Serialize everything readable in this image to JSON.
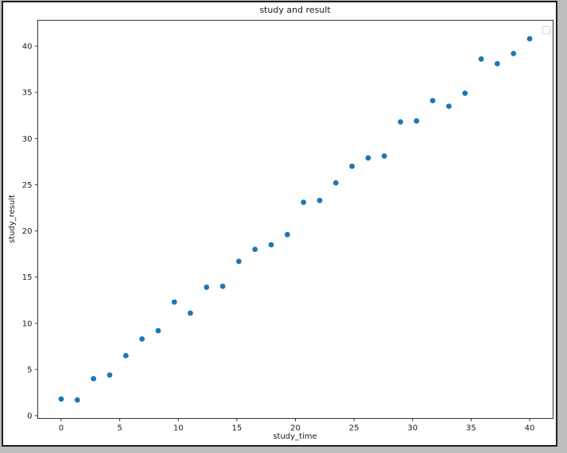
{
  "window": {
    "outer_background": "#bdbdbd",
    "figure_background": "#ffffff",
    "frame_border_color": "#1f1f1f"
  },
  "chart_data": {
    "type": "scatter",
    "title": "study and result",
    "xlabel": "study_time",
    "ylabel": "study_result",
    "x": [
      0,
      1.38,
      2.76,
      4.14,
      5.52,
      6.9,
      8.28,
      9.66,
      11.03,
      12.41,
      13.79,
      15.17,
      16.55,
      17.93,
      19.31,
      20.69,
      22.07,
      23.45,
      24.83,
      26.21,
      27.59,
      28.97,
      30.34,
      31.72,
      33.1,
      34.48,
      35.86,
      37.24,
      38.62,
      40
    ],
    "y": [
      1.8,
      1.7,
      4.0,
      4.4,
      6.5,
      8.3,
      9.2,
      12.3,
      11.1,
      13.9,
      14.0,
      16.7,
      18.0,
      18.5,
      19.6,
      23.1,
      23.3,
      25.2,
      27.0,
      27.9,
      28.1,
      31.8,
      31.9,
      34.1,
      33.5,
      34.9,
      38.6,
      38.1,
      39.2,
      40.8
    ],
    "xlim": [
      -2,
      42
    ],
    "ylim": [
      -0.3,
      42.8
    ],
    "xticks": [
      0,
      5,
      10,
      15,
      20,
      25,
      30,
      35,
      40
    ],
    "yticks": [
      0,
      5,
      10,
      15,
      20,
      25,
      30,
      35,
      40
    ],
    "grid": false,
    "legend": {
      "visible": true,
      "empty": true,
      "position": "upper right"
    },
    "marker_color": "#1f77b4",
    "marker_radius_px": 3.4,
    "spine_color": "#333333"
  }
}
